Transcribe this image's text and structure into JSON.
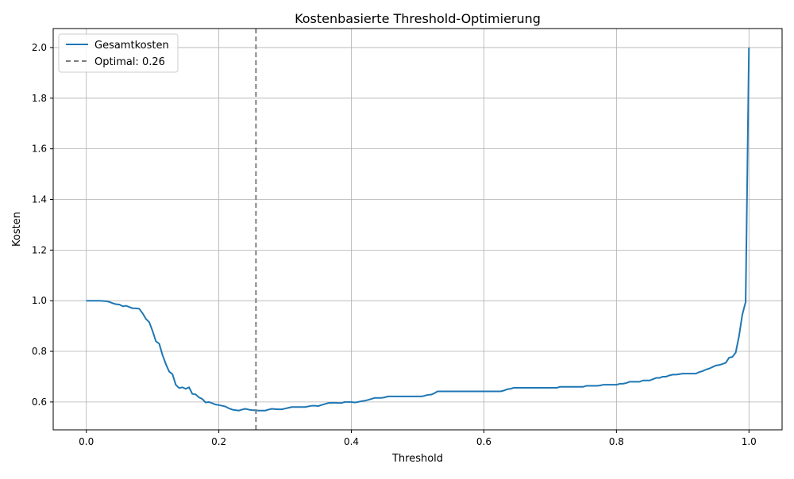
{
  "chart_data": {
    "type": "line",
    "title": "Kostenbasierte Threshold-Optimierung",
    "xlabel": "Threshold",
    "ylabel": "Kosten",
    "xlim": [
      -0.05,
      1.05
    ],
    "ylim": [
      0.49,
      2.075
    ],
    "xticks": [
      0.0,
      0.2,
      0.4,
      0.6,
      0.8,
      1.0
    ],
    "xtick_labels": [
      "0.0",
      "0.2",
      "0.4",
      "0.6",
      "0.8",
      "1.0"
    ],
    "yticks": [
      0.6,
      0.8,
      1.0,
      1.2,
      1.4,
      1.6,
      1.8,
      2.0
    ],
    "ytick_labels": [
      "0.6",
      "0.8",
      "1.0",
      "1.2",
      "1.4",
      "1.6",
      "1.8",
      "2.0"
    ],
    "grid": true,
    "legend_position": "top-left",
    "series": [
      {
        "name": "Gesamtkosten",
        "color": "#1f77b4",
        "x": [
          0.0,
          0.01,
          0.02,
          0.03,
          0.035,
          0.04,
          0.045,
          0.05,
          0.055,
          0.06,
          0.065,
          0.07,
          0.075,
          0.08,
          0.085,
          0.09,
          0.095,
          0.1,
          0.105,
          0.11,
          0.115,
          0.12,
          0.125,
          0.13,
          0.135,
          0.14,
          0.145,
          0.15,
          0.155,
          0.16,
          0.165,
          0.17,
          0.175,
          0.18,
          0.185,
          0.19,
          0.195,
          0.2,
          0.205,
          0.21,
          0.215,
          0.22,
          0.225,
          0.23,
          0.235,
          0.24,
          0.245,
          0.25,
          0.255,
          0.26,
          0.265,
          0.27,
          0.275,
          0.28,
          0.285,
          0.29,
          0.295,
          0.3,
          0.305,
          0.31,
          0.32,
          0.33,
          0.34,
          0.345,
          0.35,
          0.355,
          0.36,
          0.365,
          0.37,
          0.375,
          0.38,
          0.385,
          0.39,
          0.4,
          0.405,
          0.41,
          0.415,
          0.42,
          0.425,
          0.43,
          0.435,
          0.44,
          0.445,
          0.45,
          0.455,
          0.46,
          0.47,
          0.48,
          0.49,
          0.5,
          0.505,
          0.51,
          0.515,
          0.52,
          0.525,
          0.53,
          0.54,
          0.55,
          0.56,
          0.57,
          0.58,
          0.59,
          0.6,
          0.61,
          0.62,
          0.625,
          0.63,
          0.635,
          0.64,
          0.645,
          0.65,
          0.66,
          0.67,
          0.68,
          0.69,
          0.7,
          0.71,
          0.715,
          0.72,
          0.73,
          0.74,
          0.75,
          0.755,
          0.76,
          0.77,
          0.775,
          0.78,
          0.79,
          0.8,
          0.805,
          0.81,
          0.815,
          0.82,
          0.825,
          0.83,
          0.835,
          0.84,
          0.845,
          0.85,
          0.855,
          0.86,
          0.865,
          0.87,
          0.875,
          0.88,
          0.885,
          0.89,
          0.895,
          0.9,
          0.905,
          0.91,
          0.915,
          0.92,
          0.925,
          0.93,
          0.935,
          0.94,
          0.945,
          0.95,
          0.955,
          0.96,
          0.965,
          0.97,
          0.975,
          0.98,
          0.985,
          0.99,
          0.995,
          1.0
        ],
        "values": [
          1.0,
          1.0,
          1.0,
          0.998,
          0.995,
          0.99,
          0.986,
          0.985,
          0.978,
          0.98,
          0.975,
          0.97,
          0.97,
          0.968,
          0.95,
          0.928,
          0.915,
          0.88,
          0.84,
          0.83,
          0.785,
          0.75,
          0.72,
          0.71,
          0.668,
          0.655,
          0.658,
          0.652,
          0.658,
          0.632,
          0.63,
          0.618,
          0.612,
          0.598,
          0.6,
          0.595,
          0.59,
          0.588,
          0.585,
          0.582,
          0.575,
          0.57,
          0.568,
          0.566,
          0.57,
          0.573,
          0.57,
          0.568,
          0.567,
          0.566,
          0.566,
          0.566,
          0.57,
          0.573,
          0.572,
          0.571,
          0.571,
          0.574,
          0.577,
          0.58,
          0.58,
          0.58,
          0.585,
          0.585,
          0.584,
          0.588,
          0.592,
          0.596,
          0.597,
          0.597,
          0.596,
          0.596,
          0.6,
          0.6,
          0.598,
          0.6,
          0.603,
          0.605,
          0.608,
          0.612,
          0.616,
          0.616,
          0.616,
          0.618,
          0.622,
          0.622,
          0.622,
          0.622,
          0.622,
          0.622,
          0.622,
          0.624,
          0.628,
          0.629,
          0.634,
          0.642,
          0.642,
          0.642,
          0.642,
          0.642,
          0.642,
          0.642,
          0.642,
          0.642,
          0.642,
          0.642,
          0.645,
          0.65,
          0.652,
          0.656,
          0.656,
          0.656,
          0.656,
          0.656,
          0.656,
          0.656,
          0.656,
          0.66,
          0.66,
          0.66,
          0.66,
          0.66,
          0.664,
          0.664,
          0.664,
          0.665,
          0.668,
          0.668,
          0.668,
          0.672,
          0.672,
          0.675,
          0.68,
          0.68,
          0.68,
          0.68,
          0.685,
          0.685,
          0.685,
          0.69,
          0.695,
          0.695,
          0.7,
          0.7,
          0.705,
          0.708,
          0.708,
          0.71,
          0.712,
          0.712,
          0.712,
          0.712,
          0.712,
          0.718,
          0.722,
          0.728,
          0.732,
          0.738,
          0.744,
          0.746,
          0.75,
          0.755,
          0.775,
          0.778,
          0.795,
          0.86,
          0.945,
          0.995,
          2.0
        ]
      }
    ],
    "vlines": [
      {
        "name": "Optimal: 0.26",
        "x": 0.256,
        "color": "#7f7f7f",
        "style": "dashed"
      }
    ]
  }
}
